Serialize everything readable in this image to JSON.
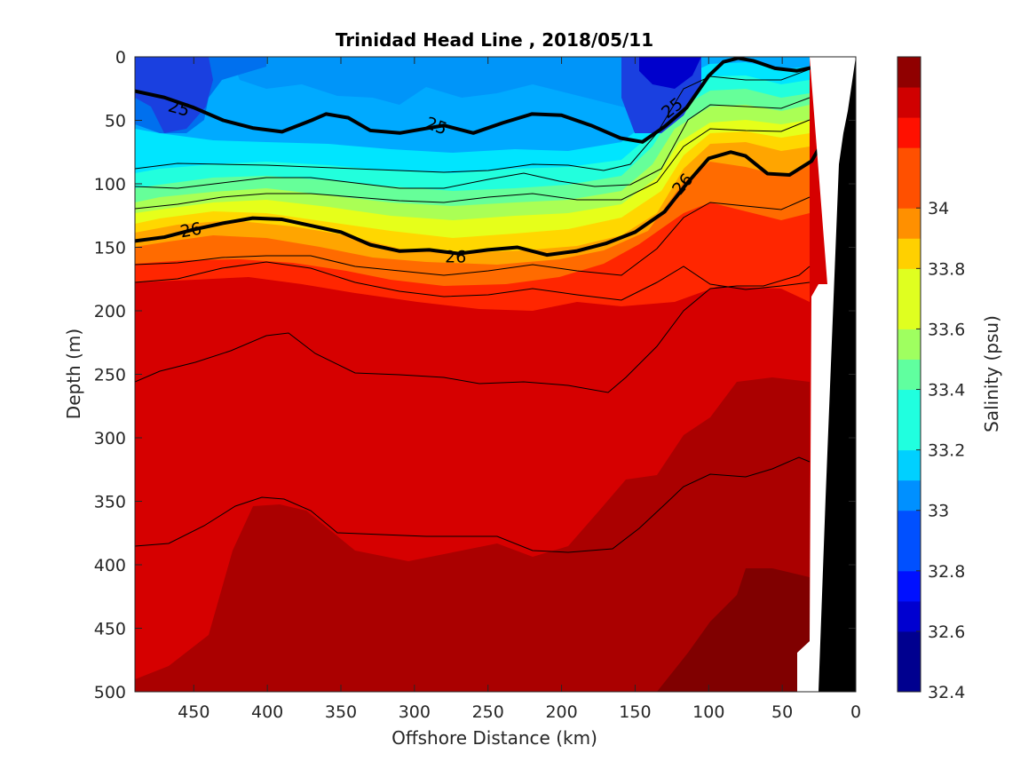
{
  "chart_data": {
    "type": "heatmap",
    "title": "Trinidad Head Line , 2018/05/11",
    "xlabel": "Offshore Distance (km)",
    "ylabel": "Depth (m)",
    "xlim": [
      490,
      0
    ],
    "ylim": [
      0,
      500
    ],
    "x_reversed": true,
    "y_reversed": true,
    "x_ticks": [
      "450",
      "400",
      "350",
      "300",
      "250",
      "200",
      "150",
      "100",
      "50",
      "0"
    ],
    "x_tick_values": [
      450,
      400,
      350,
      300,
      250,
      200,
      150,
      100,
      50,
      0
    ],
    "y_ticks": [
      "0",
      "50",
      "100",
      "150",
      "200",
      "250",
      "300",
      "350",
      "400",
      "450",
      "500"
    ],
    "y_tick_values": [
      0,
      50,
      100,
      150,
      200,
      250,
      300,
      350,
      400,
      450,
      500
    ],
    "grid": false,
    "colorbar": {
      "label": "Salinity (psu)",
      "range": [
        32.4,
        34.5
      ],
      "tick_labels": [
        "34",
        "33.8",
        "33.6",
        "33.4",
        "33.2",
        "33",
        "32.8",
        "32.6",
        "32.4"
      ],
      "tick_values": [
        34.0,
        33.8,
        33.6,
        33.4,
        33.2,
        33.0,
        32.8,
        32.6,
        32.4
      ],
      "levels_step": 0.1,
      "colormap": "jet"
    },
    "contour_labels": [
      {
        "text": "25",
        "x": 460,
        "y": 40
      },
      {
        "text": "25",
        "x": 285,
        "y": 54
      },
      {
        "text": "25",
        "x": 125,
        "y": 40
      },
      {
        "text": "26",
        "x": 452,
        "y": 136
      },
      {
        "text": "26",
        "x": 272,
        "y": 157
      },
      {
        "text": "26",
        "x": 118,
        "y": 100
      }
    ],
    "bold_isopycnals": [
      {
        "name": "25",
        "x": [
          490,
          470,
          450,
          430,
          410,
          390,
          370,
          360,
          345,
          330,
          310,
          290,
          280,
          260,
          240,
          220,
          200,
          180,
          160,
          145,
          130,
          115,
          100,
          90,
          80,
          70,
          55,
          40,
          20
        ],
        "y": [
          27,
          32,
          40,
          50,
          56,
          59,
          50,
          45,
          48,
          58,
          60,
          56,
          54,
          60,
          52,
          45,
          46,
          54,
          64,
          67,
          55,
          40,
          15,
          4,
          1,
          3,
          9,
          11,
          6
        ]
      },
      {
        "name": "26",
        "x": [
          490,
          470,
          450,
          430,
          410,
          390,
          370,
          350,
          330,
          310,
          290,
          270,
          250,
          230,
          210,
          190,
          170,
          150,
          130,
          115,
          100,
          85,
          75,
          60,
          45,
          30,
          20
        ],
        "y": [
          145,
          142,
          136,
          131,
          127,
          128,
          133,
          138,
          148,
          153,
          152,
          155,
          152,
          150,
          156,
          153,
          147,
          138,
          122,
          100,
          80,
          75,
          78,
          92,
          93,
          82,
          62
        ]
      }
    ]
  }
}
